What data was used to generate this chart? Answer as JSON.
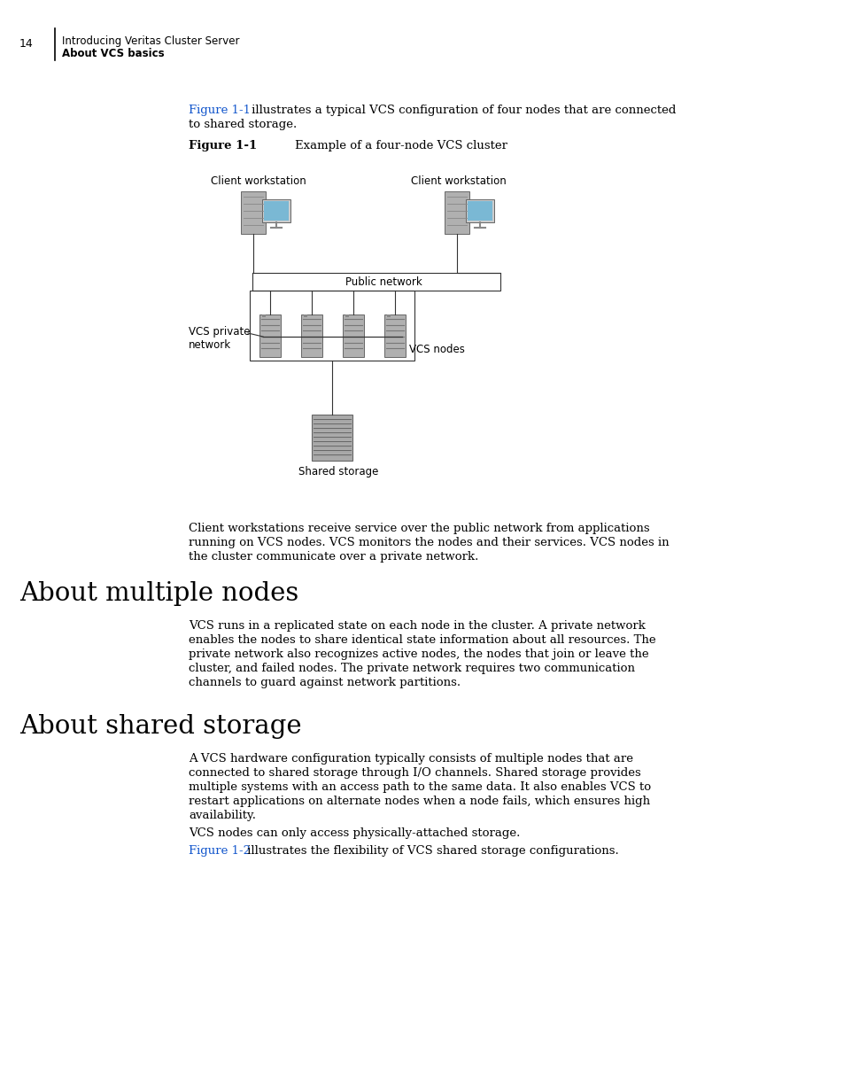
{
  "bg_color": "#ffffff",
  "page_num": "14",
  "header_line1": "Introducing Veritas Cluster Server",
  "header_line2": "About VCS basics",
  "figure_label": "Figure 1-1",
  "figure_caption": "Example of a four-node VCS cluster",
  "label_client_left": "Client workstation",
  "label_client_right": "Client workstation",
  "label_public_network": "Public network",
  "label_vcs_private": "VCS private\nnetwork",
  "label_vcs_nodes": "VCS nodes",
  "label_shared_storage": "Shared storage",
  "para1_line1": "Client workstations receive service over the public network from applications",
  "para1_line2": "running on VCS nodes. VCS monitors the nodes and their services. VCS nodes in",
  "para1_line3": "the cluster communicate over a private network.",
  "section1_title": "About multiple nodes",
  "section1_para_line1": "VCS runs in a replicated state on each node in the cluster. A private network",
  "section1_para_line2": "enables the nodes to share identical state information about all resources. The",
  "section1_para_line3": "private network also recognizes active nodes, the nodes that join or leave the",
  "section1_para_line4": "cluster, and failed nodes. The private network requires two communication",
  "section1_para_line5": "channels to guard against network partitions.",
  "section2_title": "About shared storage",
  "section2_para1_line1": "A VCS hardware configuration typically consists of multiple nodes that are",
  "section2_para1_line2": "connected to shared storage through I/O channels. Shared storage provides",
  "section2_para1_line3": "multiple systems with an access path to the same data. It also enables VCS to",
  "section2_para1_line4": "restart applications on alternate nodes when a node fails, which ensures high",
  "section2_para1_line5": "availability.",
  "section2_para2": "VCS nodes can only access physically-attached storage.",
  "section2_para3_prefix": "Figure 1-2",
  "section2_para3_suffix": " illustrates the flexibility of VCS shared storage configurations.",
  "link_color": "#1155cc",
  "text_color": "#000000"
}
